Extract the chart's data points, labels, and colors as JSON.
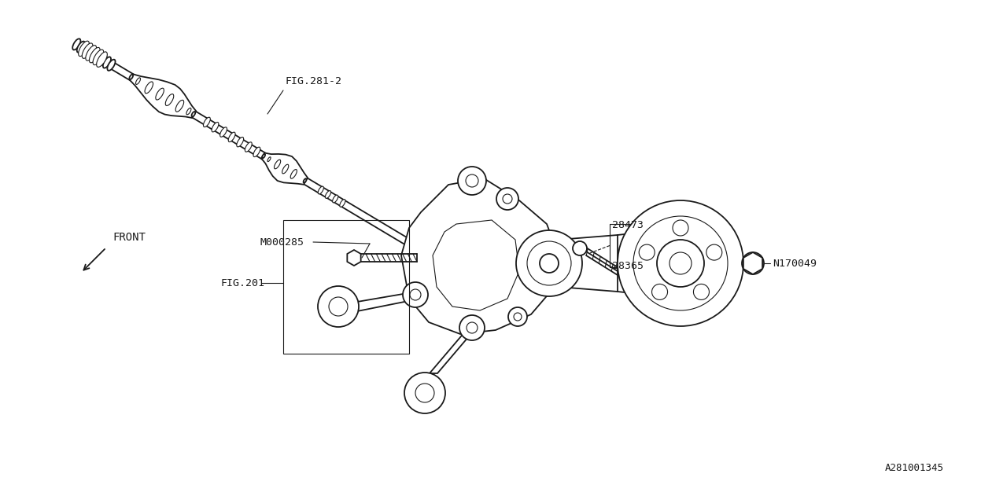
{
  "bg_color": "#ffffff",
  "line_color": "#1a1a1a",
  "fig_id": "A281001345",
  "labels": {
    "FIG281": "FIG.281-2",
    "M000285": "M000285",
    "FIG201": "FIG.201",
    "28473": "28473",
    "28365": "28365",
    "N170049": "N170049",
    "fig_id": "A281001345"
  },
  "front_text": "FRONT",
  "figwidth": 12.8,
  "figheight": 6.4,
  "dpi": 100
}
